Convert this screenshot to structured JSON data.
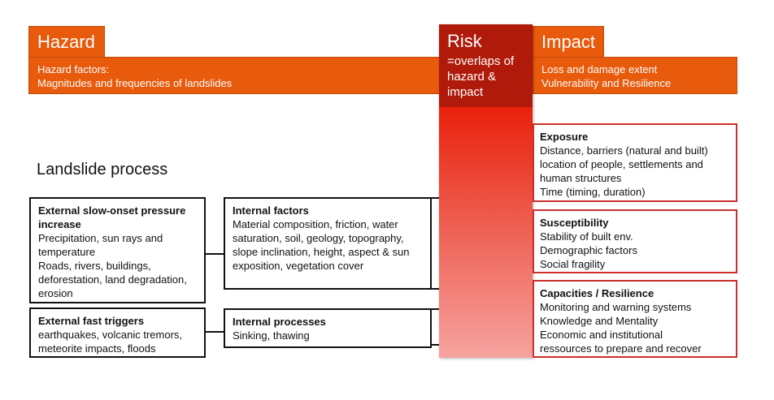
{
  "hazard": {
    "title": "Hazard",
    "lines": [
      "Hazard factors:",
      "Magnitudes and frequencies of landslides"
    ]
  },
  "risk": {
    "title": "Risk",
    "lines": [
      "=overlaps of",
      "hazard &",
      "impact"
    ]
  },
  "impact": {
    "title": "Impact",
    "lines": [
      "Loss and damage extent",
      "Vulnerability and Resilience"
    ]
  },
  "landslide_title": "Landslide process",
  "left_boxes": [
    {
      "title": "External slow-onset pressure increase",
      "lines": [
        "Precipitation, sun rays and temperature",
        "Roads, rivers, buildings, deforestation, land degradation, erosion"
      ]
    },
    {
      "title": "External fast triggers",
      "lines": [
        "earthquakes, volcanic tremors, meteorite impacts, floods"
      ]
    },
    {
      "title": "Internal factors",
      "lines": [
        "Material composition, friction, water saturation, soil, geology, topography, slope inclination, height, aspect & sun exposition, vegetation cover"
      ]
    },
    {
      "title": "Internal processes",
      "lines": [
        "Sinking, thawing"
      ]
    }
  ],
  "impact_boxes": [
    {
      "title": "Exposure",
      "lines": [
        "Distance, barriers (natural and built)",
        "location of people, settlements  and human structures",
        "Time (timing, duration)"
      ]
    },
    {
      "title": "Susceptibility",
      "lines": [
        "Stability of built env.",
        "Demographic factors",
        "Social fragility"
      ]
    },
    {
      "title": "Capacities / Resilience",
      "lines": [
        "Monitoring and warning systems",
        "Knowledge and Mentality",
        "Economic and institutional",
        "ressources to prepare and recover"
      ]
    }
  ],
  "colors": {
    "hazard": "#e85a0c",
    "risk_header": "#b01a0a",
    "risk_gradient_top": "#e8200a",
    "risk_gradient_bottom": "#f6a3a0",
    "impact_border": "#c8302a"
  }
}
